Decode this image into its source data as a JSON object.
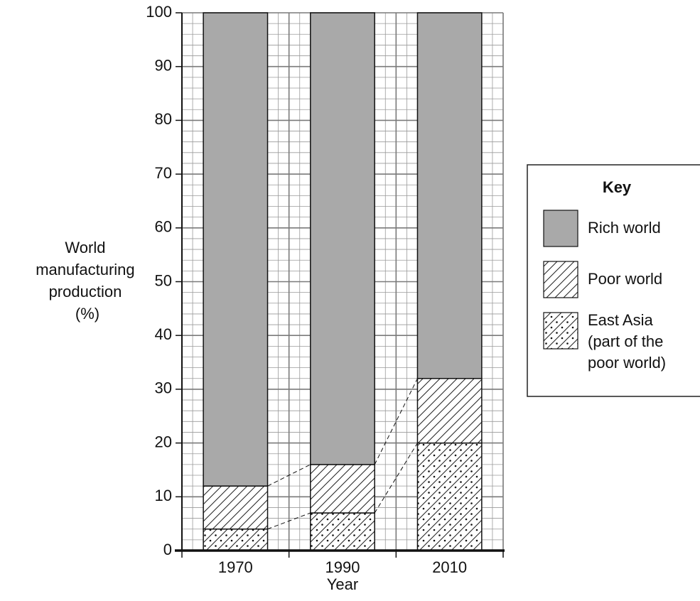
{
  "chart_data": {
    "type": "stacked_bar",
    "ylabel": "World manufacturing production (%)",
    "xlabel": "Year",
    "categories": [
      "1970",
      "1990",
      "2010"
    ],
    "series": [
      {
        "name": "Rich world",
        "color": "#a9a9a9",
        "values": [
          88,
          84,
          68
        ]
      },
      {
        "name": "Poor world",
        "pattern": "hatch",
        "values": [
          8,
          9,
          12
        ]
      },
      {
        "name": "East Asia (part of the poor world)",
        "pattern": "hatch-dots",
        "values": [
          4,
          7,
          20
        ]
      }
    ],
    "ylim": [
      0,
      100
    ],
    "yticks": [
      0,
      10,
      20,
      30,
      40,
      50,
      60,
      70,
      80,
      90,
      100
    ],
    "grid": true,
    "legend_title": "Key",
    "legend": "right"
  }
}
